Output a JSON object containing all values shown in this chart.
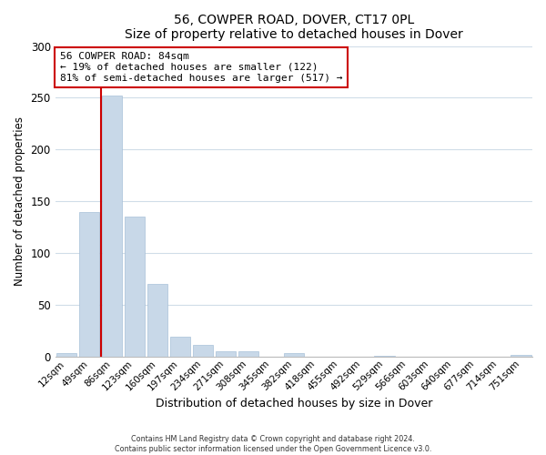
{
  "title": "56, COWPER ROAD, DOVER, CT17 0PL",
  "subtitle": "Size of property relative to detached houses in Dover",
  "xlabel": "Distribution of detached houses by size in Dover",
  "ylabel": "Number of detached properties",
  "bar_labels": [
    "12sqm",
    "49sqm",
    "86sqm",
    "123sqm",
    "160sqm",
    "197sqm",
    "234sqm",
    "271sqm",
    "308sqm",
    "345sqm",
    "382sqm",
    "418sqm",
    "455sqm",
    "492sqm",
    "529sqm",
    "566sqm",
    "603sqm",
    "640sqm",
    "677sqm",
    "714sqm",
    "751sqm"
  ],
  "bar_values": [
    3,
    140,
    252,
    135,
    70,
    19,
    11,
    5,
    5,
    0,
    3,
    0,
    0,
    0,
    1,
    0,
    0,
    0,
    0,
    0,
    2
  ],
  "bar_color": "#c8d8e8",
  "bar_edge_color": "#a8c0d8",
  "property_line_bar_index": 2,
  "annotation_title": "56 COWPER ROAD: 84sqm",
  "annotation_line1": "← 19% of detached houses are smaller (122)",
  "annotation_line2": "81% of semi-detached houses are larger (517) →",
  "annotation_box_color": "#ffffff",
  "annotation_box_edge": "#cc0000",
  "line_color": "#cc0000",
  "ylim": [
    0,
    300
  ],
  "yticks": [
    0,
    50,
    100,
    150,
    200,
    250,
    300
  ],
  "grid_color": "#d0dde8",
  "footer1": "Contains HM Land Registry data © Crown copyright and database right 2024.",
  "footer2": "Contains public sector information licensed under the Open Government Licence v3.0."
}
